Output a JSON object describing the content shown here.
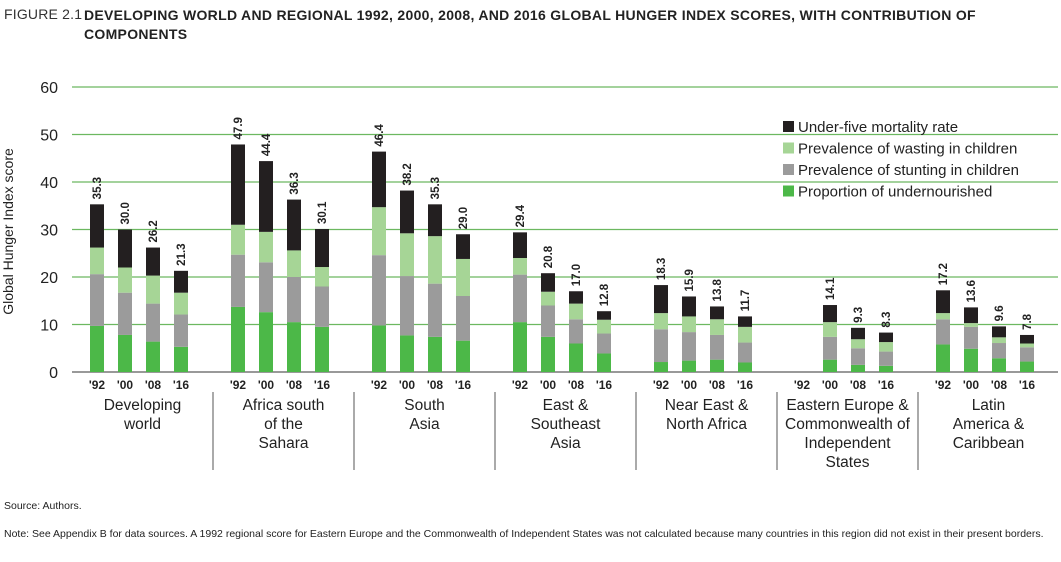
{
  "figure_label": "FIGURE 2.1",
  "title": "DEVELOPING WORLD AND REGIONAL 1992, 2000, 2008, AND 2016 GLOBAL HUNGER INDEX SCORES, WITH CONTRIBUTION OF COMPONENTS",
  "source": "Source: Authors.",
  "note": "Note: See Appendix B for data sources. A 1992 regional score for Eastern Europe and the Commonwealth of Independent States was not calculated because many countries in this region did not exist in their present borders.",
  "colors": {
    "undernourished": "#4cb848",
    "stunting": "#9b9b9b",
    "wasting": "#a6d596",
    "mortality": "#231f20",
    "gridline": "#6cb860"
  },
  "chart_data": {
    "type": "bar",
    "stacked": true,
    "ylabel": "Global Hunger Index score",
    "ylim": [
      0,
      60
    ],
    "yticks": [
      0,
      10,
      20,
      30,
      40,
      50,
      60
    ],
    "grid": true,
    "legend_position": "top-right",
    "years": [
      "'92",
      "'00",
      "'08",
      "'16"
    ],
    "series": [
      {
        "name": "Under-five mortality rate",
        "key": "mortality"
      },
      {
        "name": "Prevalence of wasting in children",
        "key": "wasting"
      },
      {
        "name": "Prevalence of stunting in children",
        "key": "stunting"
      },
      {
        "name": "Proportion of undernourished",
        "key": "undernourished"
      }
    ],
    "groups": [
      {
        "name": [
          "Developing",
          "world"
        ],
        "bars": [
          {
            "year": "'92",
            "total": "35.3",
            "undernourished": 9.7,
            "stunting": 10.9,
            "wasting": 5.6,
            "mortality": 9.1
          },
          {
            "year": "'00",
            "total": "30.0",
            "undernourished": 7.8,
            "stunting": 8.9,
            "wasting": 5.3,
            "mortality": 8.0
          },
          {
            "year": "'08",
            "total": "26.2",
            "undernourished": 6.4,
            "stunting": 8.0,
            "wasting": 5.9,
            "mortality": 5.9
          },
          {
            "year": "'16",
            "total": "21.3",
            "undernourished": 5.3,
            "stunting": 6.8,
            "wasting": 4.6,
            "mortality": 4.6
          }
        ]
      },
      {
        "name": [
          "Africa south",
          "of the",
          "Sahara"
        ],
        "bars": [
          {
            "year": "'92",
            "total": "47.9",
            "undernourished": 13.7,
            "stunting": 11.0,
            "wasting": 6.3,
            "mortality": 16.9
          },
          {
            "year": "'00",
            "total": "44.4",
            "undernourished": 12.6,
            "stunting": 10.5,
            "wasting": 6.4,
            "mortality": 14.9
          },
          {
            "year": "'08",
            "total": "36.3",
            "undernourished": 10.5,
            "stunting": 9.5,
            "wasting": 5.6,
            "mortality": 10.7
          },
          {
            "year": "'16",
            "total": "30.1",
            "undernourished": 9.5,
            "stunting": 8.5,
            "wasting": 4.1,
            "mortality": 8.0
          }
        ]
      },
      {
        "name": [
          "South",
          "Asia"
        ],
        "bars": [
          {
            "year": "'92",
            "total": "46.4",
            "undernourished": 9.8,
            "stunting": 14.8,
            "wasting": 10.1,
            "mortality": 11.7
          },
          {
            "year": "'00",
            "total": "38.2",
            "undernourished": 7.7,
            "stunting": 12.5,
            "wasting": 9.0,
            "mortality": 9.0
          },
          {
            "year": "'08",
            "total": "35.3",
            "undernourished": 7.4,
            "stunting": 11.2,
            "wasting": 10.0,
            "mortality": 6.7
          },
          {
            "year": "'16",
            "total": "29.0",
            "undernourished": 6.6,
            "stunting": 9.4,
            "wasting": 7.8,
            "mortality": 5.2
          }
        ]
      },
      {
        "name": [
          "East &",
          "Southeast",
          "Asia"
        ],
        "bars": [
          {
            "year": "'92",
            "total": "29.4",
            "undernourished": 10.5,
            "stunting": 10.0,
            "wasting": 3.5,
            "mortality": 5.4
          },
          {
            "year": "'00",
            "total": "20.8",
            "undernourished": 7.4,
            "stunting": 6.6,
            "wasting": 2.9,
            "mortality": 3.9
          },
          {
            "year": "'08",
            "total": "17.0",
            "undernourished": 6.0,
            "stunting": 5.1,
            "wasting": 3.3,
            "mortality": 2.6
          },
          {
            "year": "'16",
            "total": "12.8",
            "undernourished": 3.9,
            "stunting": 4.2,
            "wasting": 2.9,
            "mortality": 1.8
          }
        ]
      },
      {
        "name": [
          "Near East &",
          "North Africa"
        ],
        "bars": [
          {
            "year": "'92",
            "total": "18.3",
            "undernourished": 2.1,
            "stunting": 6.9,
            "wasting": 3.4,
            "mortality": 5.9
          },
          {
            "year": "'00",
            "total": "15.9",
            "undernourished": 2.4,
            "stunting": 6.0,
            "wasting": 3.3,
            "mortality": 4.2
          },
          {
            "year": "'08",
            "total": "13.8",
            "undernourished": 2.6,
            "stunting": 5.2,
            "wasting": 3.3,
            "mortality": 2.7
          },
          {
            "year": "'16",
            "total": "11.7",
            "undernourished": 2.0,
            "stunting": 4.2,
            "wasting": 3.3,
            "mortality": 2.2
          }
        ]
      },
      {
        "name": [
          "Eastern Europe &",
          "Commonwealth of",
          "Independent",
          "States"
        ],
        "bars": [
          {
            "year": "'92",
            "total": null,
            "undernourished": 0,
            "stunting": 0,
            "wasting": 0,
            "mortality": 0
          },
          {
            "year": "'00",
            "total": "14.1",
            "undernourished": 2.6,
            "stunting": 4.8,
            "wasting": 3.1,
            "mortality": 3.6
          },
          {
            "year": "'08",
            "total": "9.3",
            "undernourished": 1.5,
            "stunting": 3.5,
            "wasting": 1.9,
            "mortality": 2.4
          },
          {
            "year": "'16",
            "total": "8.3",
            "undernourished": 1.3,
            "stunting": 3.0,
            "wasting": 2.0,
            "mortality": 2.0
          }
        ]
      },
      {
        "name": [
          "Latin",
          "America &",
          "Caribbean"
        ],
        "bars": [
          {
            "year": "'92",
            "total": "17.2",
            "undernourished": 5.8,
            "stunting": 5.3,
            "wasting": 1.3,
            "mortality": 4.8
          },
          {
            "year": "'00",
            "total": "13.6",
            "undernourished": 4.9,
            "stunting": 4.6,
            "wasting": 0.8,
            "mortality": 3.3
          },
          {
            "year": "'08",
            "total": "9.6",
            "undernourished": 2.9,
            "stunting": 3.2,
            "wasting": 1.2,
            "mortality": 2.3
          },
          {
            "year": "'16",
            "total": "7.8",
            "undernourished": 2.2,
            "stunting": 3.0,
            "wasting": 0.8,
            "mortality": 1.8
          }
        ]
      }
    ]
  }
}
